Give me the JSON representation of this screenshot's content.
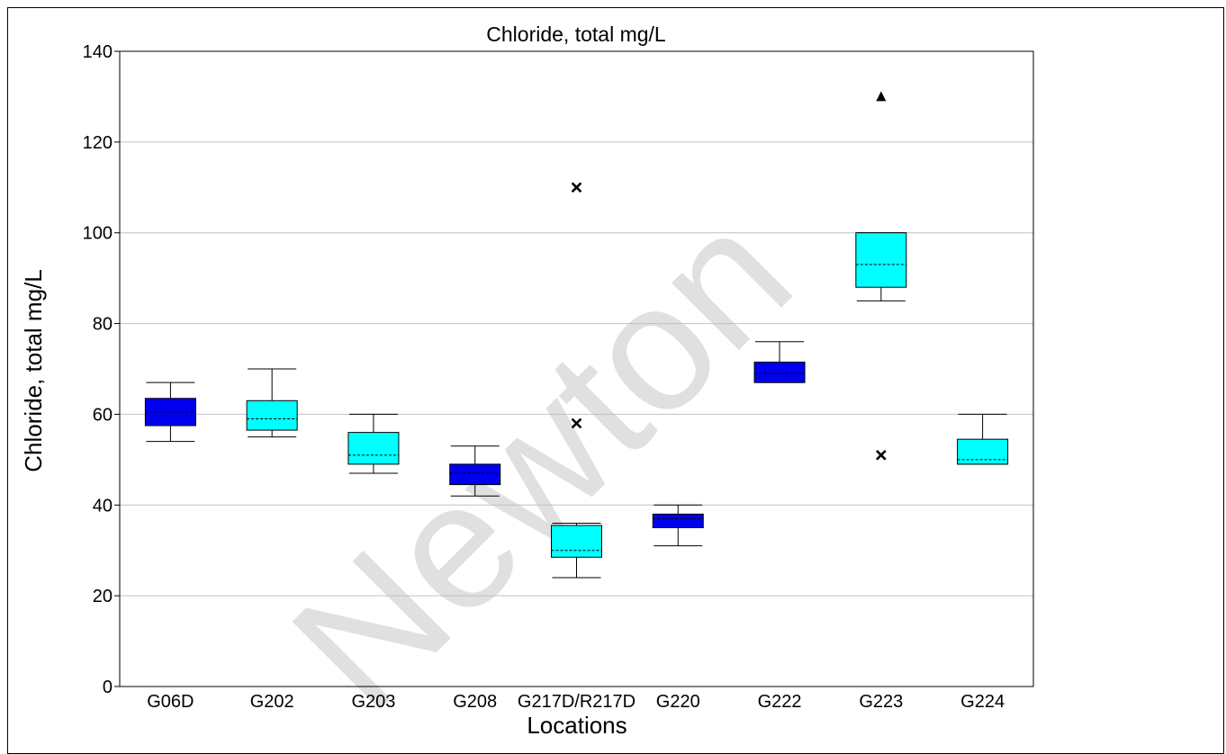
{
  "chart_data": {
    "type": "box",
    "title": "Chloride, total mg/L",
    "xlabel": "Locations",
    "ylabel": "Chloride, total mg/L",
    "ylim": [
      0,
      140
    ],
    "yticks": [
      0,
      20,
      40,
      60,
      80,
      100,
      120,
      140
    ],
    "grid": "horizontal",
    "watermark": "Newton",
    "colors": {
      "dark_box": "#0000ee",
      "light_box": "#00ffff",
      "grid": "#c0c0c0"
    },
    "categories": [
      "G06D",
      "G202",
      "G203",
      "G208",
      "G217D/R217D",
      "G220",
      "G222",
      "G223",
      "G224"
    ],
    "boxes": [
      {
        "label": "G06D",
        "whisker_low": 54,
        "q1": 57.5,
        "median": 60.5,
        "q3": 63.5,
        "whisker_high": 67,
        "color": "dark",
        "outliers": []
      },
      {
        "label": "G202",
        "whisker_low": 55,
        "q1": 56.5,
        "median": 59,
        "q3": 63,
        "whisker_high": 70,
        "color": "light",
        "outliers": []
      },
      {
        "label": "G203",
        "whisker_low": 47,
        "q1": 49,
        "median": 51,
        "q3": 56,
        "whisker_high": 60,
        "color": "light",
        "outliers": []
      },
      {
        "label": "G208",
        "whisker_low": 42,
        "q1": 44.5,
        "median": 47,
        "q3": 49,
        "whisker_high": 53,
        "color": "dark",
        "outliers": []
      },
      {
        "label": "G217D/R217D",
        "whisker_low": 24,
        "q1": 28.5,
        "median": 30,
        "q3": 35.5,
        "whisker_high": 36,
        "color": "light",
        "outliers": [
          {
            "value": 110,
            "marker": "x"
          },
          {
            "value": 58,
            "marker": "x"
          }
        ]
      },
      {
        "label": "G220",
        "whisker_low": 31,
        "q1": 35,
        "median": 37,
        "q3": 38,
        "whisker_high": 40,
        "color": "dark",
        "outliers": []
      },
      {
        "label": "G222",
        "whisker_low": 67,
        "q1": 67,
        "median": 69,
        "q3": 71.5,
        "whisker_high": 76,
        "color": "dark",
        "outliers": []
      },
      {
        "label": "G223",
        "whisker_low": 85,
        "q1": 88,
        "median": 93,
        "q3": 100,
        "whisker_high": 100,
        "color": "light",
        "outliers": [
          {
            "value": 130,
            "marker": "triangle"
          },
          {
            "value": 51,
            "marker": "x"
          }
        ]
      },
      {
        "label": "G224",
        "whisker_low": 49,
        "q1": 49,
        "median": 50,
        "q3": 54.5,
        "whisker_high": 60,
        "color": "light",
        "outliers": []
      }
    ]
  }
}
